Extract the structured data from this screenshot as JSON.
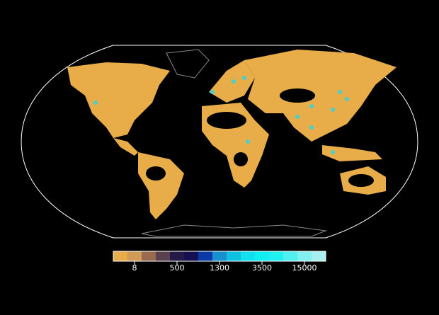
{
  "map": {
    "land_color": "#e8ad48",
    "outline_color": "#ffffff",
    "hotspot_color": "#20d8f0"
  },
  "legend": {
    "colors": [
      "#e8ad48",
      "#d19a56",
      "#9a6a4e",
      "#5a4150",
      "#241a48",
      "#151052",
      "#0a3aa8",
      "#1890d0",
      "#10c0e0",
      "#10e0f0",
      "#10eef0",
      "#20f0f0",
      "#50f0f0",
      "#80f0f0",
      "#a8f0f0"
    ],
    "ticks": [
      {
        "label": "8",
        "index": 1
      },
      {
        "label": "500",
        "index": 4
      },
      {
        "label": "1300",
        "index": 7
      },
      {
        "label": "3500",
        "index": 10
      },
      {
        "label": "15000",
        "index": 13
      }
    ]
  }
}
